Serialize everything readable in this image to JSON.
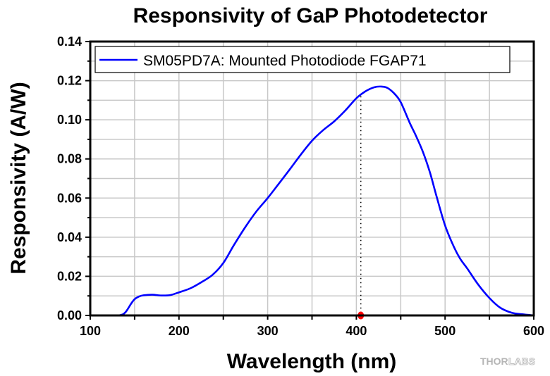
{
  "chart_data": {
    "type": "line",
    "title": "Responsivity of GaP Photodetector",
    "xlabel": "Wavelength (nm)",
    "ylabel": "Responsivity (A/W)",
    "xlim": [
      100,
      600
    ],
    "ylim": [
      0,
      0.14
    ],
    "xticks": [
      100,
      200,
      300,
      400,
      500,
      600
    ],
    "xtick_labels": [
      "100",
      "200",
      "300",
      "400",
      "500",
      "600"
    ],
    "x_minor_step": 50,
    "yticks": [
      0.0,
      0.02,
      0.04,
      0.06,
      0.08,
      0.1,
      0.12,
      0.14
    ],
    "ytick_labels": [
      "0.00",
      "0.02",
      "0.04",
      "0.06",
      "0.08",
      "0.10",
      "0.12",
      "0.14"
    ],
    "y_minor_step": 0.01,
    "grid": true,
    "legend_position": "top-left",
    "series": [
      {
        "name": "SM05PD7A: Mounted Photodiode FGAP71",
        "color": "#0000ff",
        "x": [
          129,
          133,
          137,
          140,
          143,
          146,
          150,
          155,
          160,
          170,
          180,
          190,
          200,
          213,
          226,
          238,
          250,
          262,
          275,
          287,
          300,
          312,
          325,
          337,
          350,
          362,
          375,
          387,
          400,
          410,
          420,
          428,
          435,
          443,
          450,
          460,
          467,
          475,
          483,
          490,
          500,
          510,
          517,
          525,
          537,
          550,
          562,
          575,
          587,
          600
        ],
        "y": [
          0.0,
          0.0001,
          0.0006,
          0.0018,
          0.0038,
          0.006,
          0.0083,
          0.0097,
          0.0103,
          0.0106,
          0.0102,
          0.0104,
          0.0118,
          0.0139,
          0.0172,
          0.0208,
          0.0268,
          0.036,
          0.0453,
          0.053,
          0.06,
          0.067,
          0.0747,
          0.082,
          0.0893,
          0.0945,
          0.0992,
          0.1045,
          0.111,
          0.1145,
          0.1166,
          0.117,
          0.1163,
          0.1133,
          0.109,
          0.0986,
          0.092,
          0.0836,
          0.073,
          0.0615,
          0.046,
          0.035,
          0.029,
          0.024,
          0.016,
          0.0089,
          0.004,
          0.0014,
          0.0006,
          0.0
        ]
      }
    ],
    "annotations": [
      {
        "type": "vertical-dotted-line",
        "x": 405,
        "y_top": 0.112,
        "color": "#000000"
      },
      {
        "type": "marker",
        "x": 405,
        "y": 0.0,
        "color": "#ff0000"
      }
    ]
  },
  "watermark": {
    "part1": "THOR",
    "part2": "LABS"
  }
}
